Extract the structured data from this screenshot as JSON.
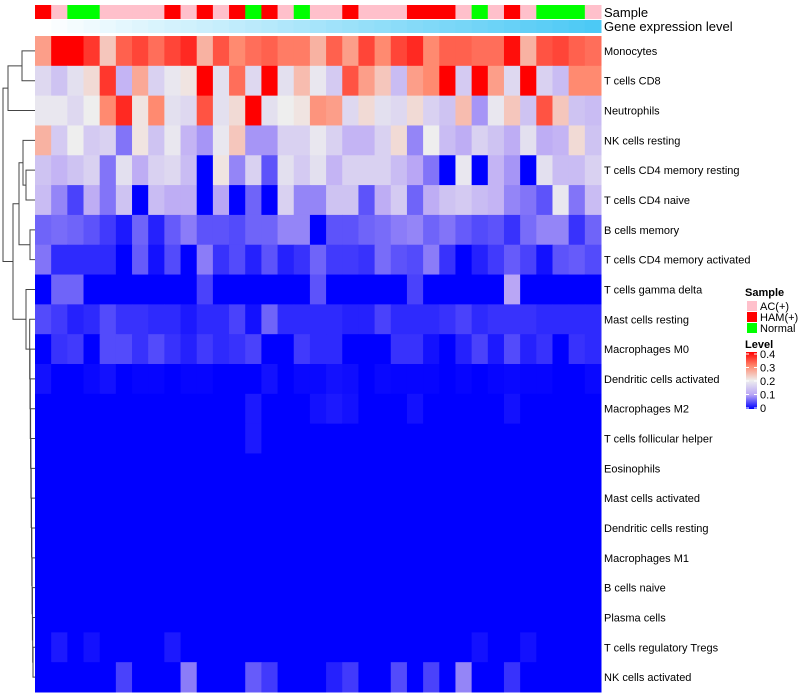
{
  "chart_data": {
    "type": "heatmap",
    "annotation_labels": {
      "sample": "Sample",
      "gene_expression": "Gene expression level"
    },
    "legend": {
      "sample_title": "Sample",
      "sample_entries": [
        {
          "label": "AC(+)",
          "color": "#ffc0cb"
        },
        {
          "label": "HAM(+)",
          "color": "#ff0000"
        },
        {
          "label": "Normal",
          "color": "#00ff00"
        }
      ],
      "level_title": "Level",
      "level_ticks": [
        "0.4",
        "0.3",
        "0.2",
        "0.1",
        "0"
      ],
      "level_tick_values": [
        0.4,
        0.3,
        0.2,
        0.1,
        0
      ],
      "colorscale": [
        [
          0,
          "#0000ff"
        ],
        [
          0.1,
          "#b9a6f5"
        ],
        [
          0.2,
          "#eeeeee"
        ],
        [
          0.3,
          "#ff8a70"
        ],
        [
          0.4,
          "#ff0000"
        ]
      ],
      "placement": "right"
    },
    "gene_expression_colors": [
      "#ffffff",
      "#4cc9f5"
    ],
    "samples": [
      "HAM(+)",
      "AC(+)",
      "Normal",
      "Normal",
      "AC(+)",
      "AC(+)",
      "AC(+)",
      "AC(+)",
      "HAM(+)",
      "AC(+)",
      "HAM(+)",
      "AC(+)",
      "HAM(+)",
      "Normal",
      "HAM(+)",
      "AC(+)",
      "Normal",
      "AC(+)",
      "AC(+)",
      "HAM(+)",
      "AC(+)",
      "AC(+)",
      "AC(+)",
      "HAM(+)",
      "HAM(+)",
      "HAM(+)",
      "AC(+)",
      "Normal",
      "AC(+)",
      "HAM(+)",
      "AC(+)",
      "Normal",
      "Normal",
      "Normal",
      "AC(+)"
    ],
    "gene_expression_level": [
      0,
      0.03,
      0.06,
      0.09,
      0.12,
      0.15,
      0.18,
      0.21,
      0.24,
      0.26,
      0.29,
      0.32,
      0.35,
      0.38,
      0.41,
      0.44,
      0.47,
      0.5,
      0.53,
      0.56,
      0.59,
      0.62,
      0.65,
      0.68,
      0.71,
      0.74,
      0.76,
      0.79,
      0.82,
      0.85,
      0.88,
      0.91,
      0.94,
      0.97,
      1.0
    ],
    "rows": [
      "Monocytes",
      "T cells CD8",
      "Neutrophils",
      "NK cells resting",
      "T cells CD4 memory resting",
      "T cells CD4 naive",
      "B cells memory",
      "T cells CD4 memory activated",
      "T cells gamma delta",
      "Mast cells resting",
      "Macrophages M0",
      "Dendritic cells activated",
      "Macrophages M2",
      "T cells follicular helper",
      "Eosinophils",
      "Mast cells activated",
      "Dendritic cells resting",
      "Macrophages M1",
      "B cells naive",
      "Plasma cells",
      "T cells regulatory  Tregs",
      "NK cells activated"
    ],
    "values": [
      [
        0.28,
        0.4,
        0.4,
        0.36,
        0.24,
        0.33,
        0.35,
        0.32,
        0.35,
        0.37,
        0.26,
        0.34,
        0.3,
        0.32,
        0.33,
        0.31,
        0.31,
        0.26,
        0.33,
        0.28,
        0.35,
        0.3,
        0.35,
        0.37,
        0.3,
        0.33,
        0.33,
        0.32,
        0.32,
        0.39,
        0.26,
        0.34,
        0.35,
        0.33,
        0.32
      ],
      [
        0.17,
        0.14,
        0.18,
        0.22,
        0.36,
        0.12,
        0.27,
        0.16,
        0.19,
        0.21,
        0.4,
        0.18,
        0.32,
        0.17,
        0.4,
        0.18,
        0.25,
        0.19,
        0.15,
        0.34,
        0.28,
        0.24,
        0.13,
        0.28,
        0.3,
        0.4,
        0.15,
        0.4,
        0.28,
        0.17,
        0.4,
        0.16,
        0.13,
        0.3,
        0.3
      ],
      [
        0.19,
        0.19,
        0.17,
        0.2,
        0.3,
        0.37,
        0.21,
        0.3,
        0.18,
        0.17,
        0.34,
        0.18,
        0.22,
        0.4,
        0.18,
        0.2,
        0.21,
        0.29,
        0.28,
        0.17,
        0.22,
        0.18,
        0.17,
        0.22,
        0.16,
        0.14,
        0.25,
        0.09,
        0.19,
        0.24,
        0.14,
        0.34,
        0.24,
        0.14,
        0.13
      ],
      [
        0.26,
        0.15,
        0.2,
        0.15,
        0.16,
        0.07,
        0.21,
        0.14,
        0.19,
        0.12,
        0.09,
        0.19,
        0.24,
        0.09,
        0.09,
        0.16,
        0.16,
        0.19,
        0.16,
        0.12,
        0.12,
        0.16,
        0.22,
        0.08,
        0.2,
        0.13,
        0.11,
        0.16,
        0.14,
        0.11,
        0.18,
        0.11,
        0.12,
        0.22,
        0.14
      ],
      [
        0.14,
        0.12,
        0.14,
        0.16,
        0.07,
        0.18,
        0.11,
        0.16,
        0.17,
        0.13,
        0.0,
        0.21,
        0.08,
        0.16,
        0.05,
        0.18,
        0.15,
        0.18,
        0.12,
        0.16,
        0.16,
        0.16,
        0.13,
        0.1,
        0.07,
        0.0,
        0.19,
        0.0,
        0.12,
        0.09,
        0.0,
        0.18,
        0.13,
        0.13,
        0.16
      ],
      [
        0.13,
        0.08,
        0.04,
        0.11,
        0.07,
        0.14,
        0.0,
        0.13,
        0.11,
        0.11,
        0.0,
        0.1,
        0.0,
        0.06,
        0.0,
        0.16,
        0.08,
        0.08,
        0.14,
        0.14,
        0.05,
        0.11,
        0.15,
        0.06,
        0.11,
        0.14,
        0.15,
        0.13,
        0.12,
        0.08,
        0.07,
        0.05,
        0.19,
        0.07,
        0.13
      ],
      [
        0.06,
        0.065,
        0.06,
        0.05,
        0.035,
        0.015,
        0.06,
        0.02,
        0.055,
        0.075,
        0.05,
        0.05,
        0.045,
        0.06,
        0.06,
        0.08,
        0.08,
        0.0,
        0.05,
        0.05,
        0.06,
        0.065,
        0.075,
        0.08,
        0.06,
        0.07,
        0.055,
        0.045,
        0.05,
        0.03,
        0.065,
        0.08,
        0.08,
        0.03,
        0.06
      ],
      [
        0.07,
        0.025,
        0.025,
        0.025,
        0.025,
        0.0,
        0.055,
        0.01,
        0.045,
        0.0,
        0.075,
        0.03,
        0.045,
        0.02,
        0.05,
        0.02,
        0.03,
        0.06,
        0.035,
        0.035,
        0.03,
        0.065,
        0.05,
        0.045,
        0.075,
        0.03,
        0.0,
        0.02,
        0.035,
        0.055,
        0.04,
        0.01,
        0.05,
        0.055,
        0.045
      ],
      [
        0,
        0.06,
        0.06,
        0,
        0,
        0,
        0,
        0,
        0,
        0,
        0.04,
        0,
        0,
        0,
        0,
        0,
        0,
        0.05,
        0,
        0,
        0,
        0,
        0,
        0.04,
        0,
        0,
        0,
        0,
        0,
        0.1,
        0,
        0,
        0,
        0,
        0
      ],
      [
        0.045,
        0.035,
        0.02,
        0.025,
        0.045,
        0.03,
        0.03,
        0.025,
        0.025,
        0.015,
        0.025,
        0.025,
        0.04,
        0.01,
        0.06,
        0.025,
        0.025,
        0.025,
        0.025,
        0.02,
        0.02,
        0.04,
        0.025,
        0.025,
        0.025,
        0.03,
        0.04,
        0.025,
        0.03,
        0.03,
        0.03,
        0.025,
        0.025,
        0.025,
        0.025
      ],
      [
        0,
        0.03,
        0.035,
        0,
        0.045,
        0.045,
        0.03,
        0.045,
        0.03,
        0.02,
        0.035,
        0.025,
        0.03,
        0.04,
        0,
        0,
        0.035,
        0.025,
        0.025,
        0,
        0,
        0,
        0.03,
        0.03,
        0.01,
        0,
        0.02,
        0.04,
        0.015,
        0.045,
        0.02,
        0.03,
        0,
        0.03,
        0.025
      ],
      [
        0.01,
        0,
        0,
        0.005,
        0.01,
        0,
        0.003,
        0.003,
        0,
        0.003,
        0.003,
        0,
        0,
        0,
        0.01,
        0,
        0.005,
        0.005,
        0.01,
        0.008,
        0,
        0.005,
        0.003,
        0.003,
        0.003,
        0,
        0.003,
        0,
        0.003,
        0.005,
        0.003,
        0.003,
        0,
        0,
        0.005
      ],
      [
        0,
        0,
        0,
        0,
        0,
        0,
        0,
        0,
        0,
        0,
        0,
        0,
        0,
        0.015,
        0,
        0,
        0,
        0.01,
        0.015,
        0.01,
        0,
        0,
        0,
        0.01,
        0,
        0,
        0,
        0,
        0,
        0.01,
        0,
        0,
        0,
        0,
        0
      ],
      [
        0,
        0,
        0,
        0,
        0,
        0,
        0,
        0,
        0,
        0,
        0,
        0,
        0,
        0.015,
        0,
        0,
        0,
        0,
        0,
        0,
        0,
        0,
        0,
        0,
        0,
        0,
        0,
        0,
        0,
        0,
        0,
        0,
        0,
        0,
        0
      ],
      [
        0,
        0,
        0,
        0,
        0,
        0,
        0,
        0,
        0,
        0,
        0,
        0,
        0,
        0,
        0,
        0,
        0,
        0,
        0,
        0,
        0,
        0,
        0,
        0,
        0,
        0,
        0,
        0,
        0,
        0,
        0,
        0,
        0,
        0,
        0
      ],
      [
        0,
        0,
        0,
        0,
        0,
        0,
        0,
        0,
        0,
        0,
        0,
        0,
        0,
        0,
        0,
        0,
        0,
        0,
        0,
        0,
        0,
        0,
        0,
        0,
        0,
        0,
        0,
        0,
        0,
        0,
        0,
        0,
        0,
        0,
        0
      ],
      [
        0,
        0,
        0,
        0,
        0,
        0,
        0,
        0,
        0,
        0,
        0,
        0,
        0,
        0,
        0,
        0,
        0,
        0,
        0,
        0,
        0,
        0,
        0,
        0,
        0,
        0,
        0,
        0,
        0,
        0,
        0,
        0,
        0,
        0,
        0
      ],
      [
        0,
        0,
        0,
        0,
        0,
        0,
        0,
        0,
        0,
        0,
        0,
        0,
        0,
        0,
        0,
        0,
        0,
        0,
        0,
        0,
        0,
        0,
        0,
        0,
        0,
        0,
        0,
        0,
        0,
        0,
        0,
        0,
        0,
        0,
        0
      ],
      [
        0,
        0,
        0,
        0,
        0,
        0,
        0,
        0,
        0,
        0,
        0,
        0,
        0,
        0,
        0,
        0,
        0,
        0,
        0,
        0,
        0,
        0,
        0,
        0,
        0,
        0,
        0,
        0,
        0,
        0,
        0,
        0,
        0,
        0,
        0
      ],
      [
        0,
        0,
        0,
        0,
        0,
        0,
        0,
        0,
        0,
        0,
        0,
        0,
        0,
        0,
        0,
        0,
        0,
        0,
        0,
        0,
        0,
        0,
        0,
        0,
        0,
        0,
        0,
        0,
        0,
        0,
        0,
        0,
        0,
        0,
        0
      ],
      [
        0,
        0.015,
        0,
        0.01,
        0,
        0,
        0,
        0,
        0.015,
        0,
        0,
        0,
        0,
        0,
        0,
        0,
        0,
        0,
        0,
        0,
        0,
        0,
        0,
        0,
        0,
        0,
        0,
        0.01,
        0,
        0,
        0.01,
        0,
        0,
        0,
        0
      ],
      [
        0,
        0,
        0,
        0,
        0,
        0.04,
        0,
        0,
        0,
        0.075,
        0,
        0,
        0,
        0.055,
        0.035,
        0,
        0,
        0,
        0.02,
        0.035,
        0,
        0,
        0.045,
        0,
        0.04,
        0,
        0.08,
        0,
        0,
        0.03,
        0,
        0,
        0,
        0,
        0
      ]
    ],
    "xlabel": "",
    "ylabel": "",
    "grid": false
  }
}
